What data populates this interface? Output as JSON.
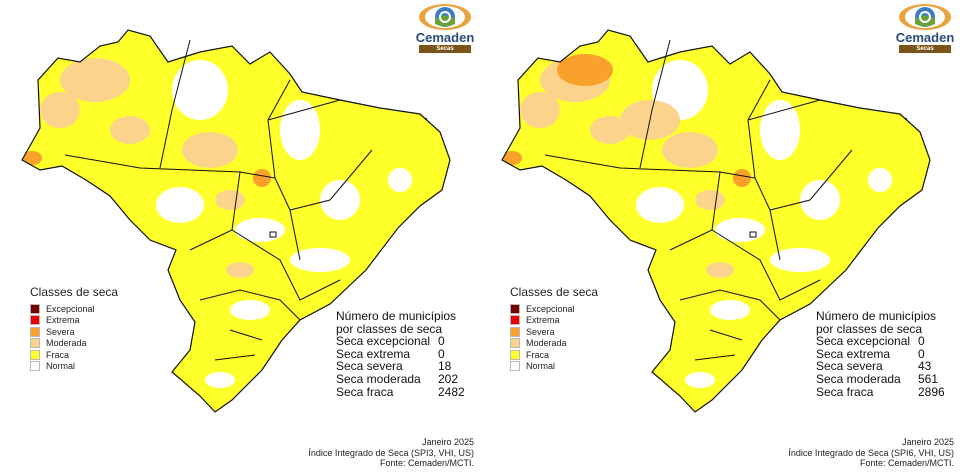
{
  "colors": {
    "Excepcional": "#730000",
    "Extrema": "#e60000",
    "Severa": "#f9a12b",
    "Moderada": "#fcd38a",
    "Fraca": "#ffff2a",
    "Normal": "#ffffff"
  },
  "panels": [
    {
      "logo": {
        "name": "Cemaden",
        "sub": "Secas"
      },
      "legend": {
        "title": "Classes de seca",
        "items": [
          "Excepcional",
          "Extrema",
          "Severa",
          "Moderada",
          "Fraca",
          "Normal"
        ]
      },
      "counts": {
        "title1": "Número de municípios",
        "title2": "por classes de seca",
        "rows": [
          {
            "label": "Seca excepcional",
            "value": "0"
          },
          {
            "label": "Seca extrema",
            "value": "0"
          },
          {
            "label": "Seca severa",
            "value": "18"
          },
          {
            "label": "Seca moderada",
            "value": "202"
          },
          {
            "label": "Seca fraca",
            "value": "2482"
          }
        ]
      },
      "footer": {
        "date": "Janeiro 2025",
        "index": "Índice Integrado de Seca (SPI3, VHI, US)",
        "source": "Fonte: Cemaden/MCTI."
      },
      "severity": 0.4
    },
    {
      "logo": {
        "name": "Cemaden",
        "sub": "Secas"
      },
      "legend": {
        "title": "Classes de seca",
        "items": [
          "Excepcional",
          "Extrema",
          "Severa",
          "Moderada",
          "Fraca",
          "Normal"
        ]
      },
      "counts": {
        "title1": "Número de municípios",
        "title2": "por classes de seca",
        "rows": [
          {
            "label": "Seca excepcional",
            "value": "0"
          },
          {
            "label": "Seca extrema",
            "value": "0"
          },
          {
            "label": "Seca severa",
            "value": "43"
          },
          {
            "label": "Seca moderada",
            "value": "561"
          },
          {
            "label": "Seca fraca",
            "value": "2896"
          }
        ]
      },
      "footer": {
        "date": "Janeiro 2025",
        "index": "Índice Integrado de Seca (SPI6, VHI, US)",
        "source": "Fonte: Cemaden/MCTI."
      },
      "severity": 1
    }
  ]
}
